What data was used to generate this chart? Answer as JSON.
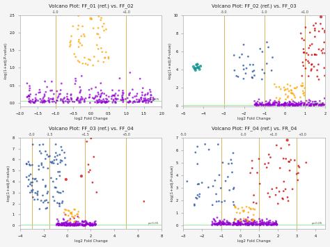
{
  "plots": [
    {
      "title": "Volcano Plot: FF_01 (ref.) vs. FF_02",
      "xlabel": "log2 Fold Change",
      "ylabel": "-log(1+adj.P-value)",
      "vlines": [
        -1.0,
        1.0
      ],
      "vline_labels": [
        "-1.0",
        "+1.0"
      ],
      "xlim": [
        -2.0,
        2.0
      ],
      "ylim": [
        2.5,
        -0.1
      ],
      "hline_y": 0.05,
      "row": 0,
      "col": 0
    },
    {
      "title": "Volcano Plot: FF_02 (ref.) vs. FF_03",
      "xlabel": "log2 Fold Change",
      "ylabel": "-log(1+adj.P-value)",
      "vlines": [
        -3.0,
        -1.0,
        1.0
      ],
      "vline_labels": [
        "-3.0",
        "-1.0",
        "+1.0"
      ],
      "xlim": [
        -5.0,
        2.0
      ],
      "ylim": [
        10.0,
        -0.1
      ],
      "hline_y": 0.05,
      "row": 0,
      "col": 1
    },
    {
      "title": "Volcano Plot: FF_03 (ref.) vs. FF_04",
      "xlabel": "log2 Fold Change",
      "ylabel": "-log(1+adj.P-value)",
      "vlines": [
        -3.0,
        -1.5,
        1.5,
        5.0
      ],
      "vline_labels": [
        "-3.0",
        "-1.5",
        "+1.5",
        "+5.0"
      ],
      "xlim": [
        -4.0,
        8.0
      ],
      "ylim": [
        8.0,
        -0.3
      ],
      "hline_y": 0.05,
      "row": 1,
      "col": 0
    },
    {
      "title": "Volcano Plot: FF_04 (ref.) vs. FR_04",
      "xlabel": "log2 Fold Change",
      "ylabel": "-log(1+adj.P-value)",
      "vlines": [
        -5.0,
        -1.0,
        1.0,
        3.0
      ],
      "vline_labels": [
        "-5.0",
        "-1.0",
        "+1.0",
        "+3.0"
      ],
      "xlim": [
        -3.0,
        4.5
      ],
      "ylim": [
        7.0,
        -0.3
      ],
      "hline_y": 0.05,
      "row": 1,
      "col": 1
    }
  ]
}
